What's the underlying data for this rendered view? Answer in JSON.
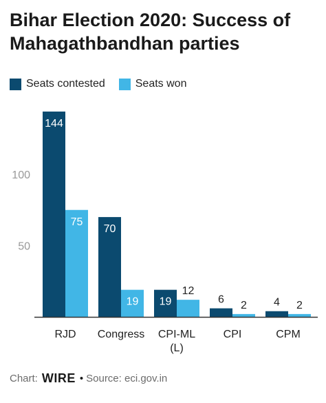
{
  "title": "Bihar Election 2020: Success of Mahagathbandhan parties",
  "legend": [
    {
      "label": "Seats contested",
      "color": "#0b4a6f"
    },
    {
      "label": "Seats won",
      "color": "#41b6e6"
    }
  ],
  "footer": {
    "chart_prefix": "Chart:",
    "logo_text": "WIRE",
    "separator": "•",
    "source": "Source: eci.gov.in"
  },
  "chart_data": {
    "type": "bar",
    "title": "Bihar Election 2020: Success of Mahagathbandhan parties",
    "categories": [
      "RJD",
      "Congress",
      "CPI-ML (L)",
      "CPI",
      "CPM"
    ],
    "series": [
      {
        "name": "Seats contested",
        "values": [
          144,
          70,
          19,
          6,
          4
        ],
        "color": "#0b4a6f"
      },
      {
        "name": "Seats won",
        "values": [
          75,
          19,
          12,
          2,
          2
        ],
        "color": "#41b6e6"
      }
    ],
    "yticks": [
      50,
      100
    ],
    "ylim": [
      0,
      145
    ],
    "grid": false,
    "legend_position": "top-left",
    "xlabel": "",
    "ylabel": ""
  }
}
